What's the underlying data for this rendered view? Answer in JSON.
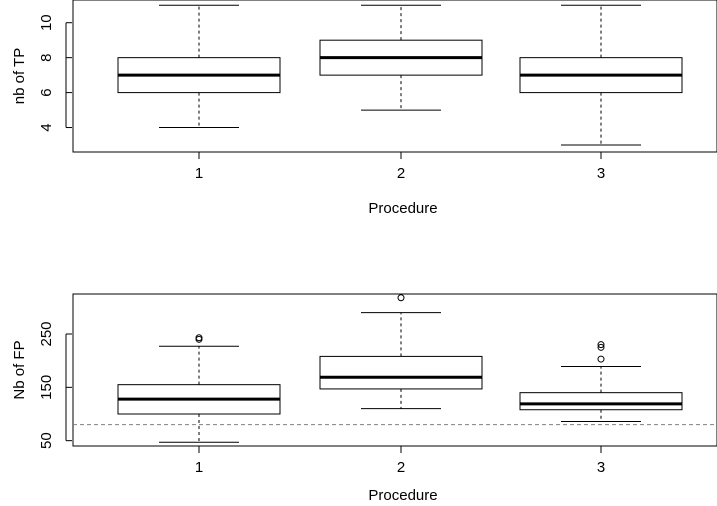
{
  "chart_data": [
    {
      "type": "boxplot",
      "title": "",
      "xlabel": "Procedure",
      "ylabel": "nb of TP",
      "categories": [
        "1",
        "2",
        "3"
      ],
      "ylim": [
        2.6,
        11.3
      ],
      "yticks": [
        4,
        6,
        8,
        10
      ],
      "boxes": [
        {
          "category": "1",
          "whisker_low": 4,
          "q1": 6,
          "median": 7,
          "q3": 8,
          "whisker_high": 11,
          "outliers": []
        },
        {
          "category": "2",
          "whisker_low": 5,
          "q1": 7,
          "median": 8,
          "q3": 9,
          "whisker_high": 11,
          "outliers": []
        },
        {
          "category": "3",
          "whisker_low": 3,
          "q1": 6,
          "median": 7,
          "q3": 8,
          "whisker_high": 11,
          "outliers": []
        }
      ],
      "reference_line": null
    },
    {
      "type": "boxplot",
      "title": "",
      "xlabel": "Procedure",
      "ylabel": "Nb of FP",
      "categories": [
        "1",
        "2",
        "3"
      ],
      "ylim": [
        40,
        325
      ],
      "yticks": [
        50,
        150,
        250
      ],
      "boxes": [
        {
          "category": "1",
          "whisker_low": 47,
          "q1": 100,
          "median": 128,
          "q3": 155,
          "whisker_high": 227,
          "outliers": [
            240,
            243
          ]
        },
        {
          "category": "2",
          "whisker_low": 110,
          "q1": 147,
          "median": 169,
          "q3": 208,
          "whisker_high": 290,
          "outliers": [
            318
          ]
        },
        {
          "category": "3",
          "whisker_low": 86,
          "q1": 108,
          "median": 119,
          "q3": 140,
          "whisker_high": 189,
          "outliers": [
            203,
            225,
            230
          ]
        }
      ],
      "reference_line": {
        "y": 80,
        "style": "dashed",
        "color": "#808080"
      }
    }
  ]
}
